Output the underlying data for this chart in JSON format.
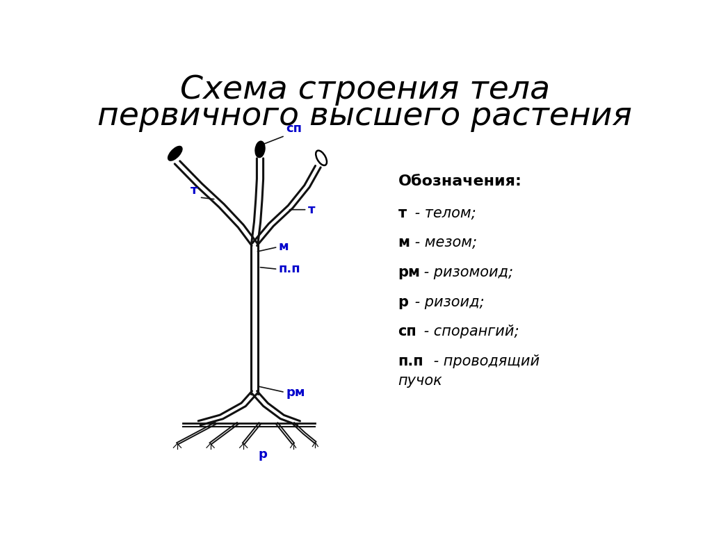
{
  "title_line1": "Схема строения тела",
  "title_line2": "первичного высшего растения",
  "title_fontsize": 34,
  "bg_color": "#ffffff",
  "label_color": "#0000cc",
  "line_color": "#111111",
  "legend_title": "Обозначения:",
  "legend_items": [
    {
      "bold": "т",
      "rest": " - телом;"
    },
    {
      "bold": "м",
      "rest": " - мезом;"
    },
    {
      "bold": "рм",
      "rest": " - ризомоид;"
    },
    {
      "bold": "р",
      "rest": " - ризоид;"
    },
    {
      "bold": "сп",
      "rest": " - спорангий;"
    },
    {
      "bold": "п.п",
      "rest": " - проводящий\nпучок"
    }
  ]
}
